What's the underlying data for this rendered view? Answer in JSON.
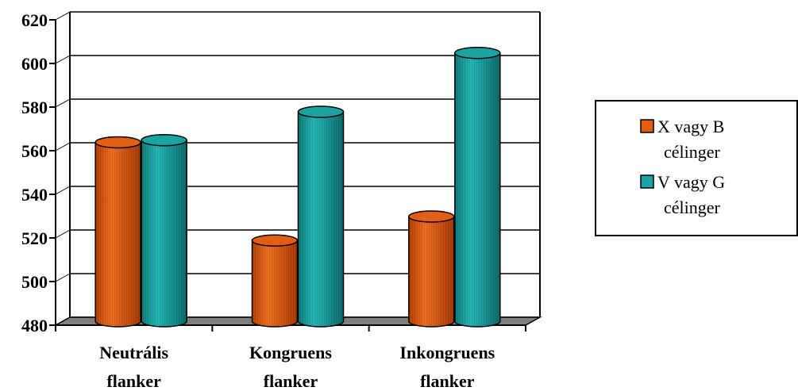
{
  "chart_data": {
    "type": "bar",
    "style": "3d-cylinder",
    "categories": [
      [
        "Neutrális",
        "flanker"
      ],
      [
        "Kongruens",
        "flanker"
      ],
      [
        "Inkongruens",
        "flanker"
      ]
    ],
    "series": [
      {
        "name": "X vagy B célinger",
        "legend_lines": [
          "X vagy B",
          "célinger"
        ],
        "color": "#E25E10",
        "values": [
          562,
          517,
          528
        ]
      },
      {
        "name": "V vagy G célinger",
        "legend_lines": [
          "V vagy G",
          "célinger"
        ],
        "color": "#1AA3A3",
        "values": [
          563,
          576,
          603
        ]
      }
    ],
    "ylim": [
      480,
      620
    ],
    "ytick_step": 20,
    "yticks": [
      "480",
      "500",
      "520",
      "540",
      "560",
      "580",
      "600",
      "620"
    ],
    "grid": true,
    "floor_color": "#808080",
    "legend_position": "right"
  }
}
